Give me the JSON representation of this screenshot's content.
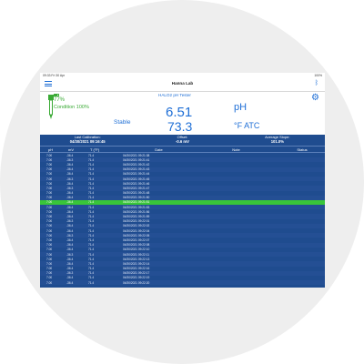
{
  "status_bar": {
    "time_date": "09:33  Fri 30 Apr",
    "battery": "100%"
  },
  "nav": {
    "title": "Hanna Lab"
  },
  "reading": {
    "probe_name": "HALO2 pH Tester",
    "battery_percent": "77%",
    "condition": "Condition 100%",
    "stability": "Stable",
    "ph_value": "6.51",
    "ph_unit": "pH",
    "temp_value": "73.3",
    "temp_unit": "°F ATC"
  },
  "calibration": {
    "last_label": "Last Calibration:",
    "last_value": "04/30/2021 09:16:45",
    "offset_label": "Offset:",
    "offset_value": "-0.6 mV",
    "slope_label": "Average Slope:",
    "slope_value": "101.0%"
  },
  "table": {
    "headers": {
      "ph": "pH",
      "mv": "mV",
      "temp": "T (°F)",
      "date": "Date",
      "note": "Note",
      "status": "Status"
    },
    "selected_index": 10,
    "rows": [
      {
        "ph": "7.00",
        "mv": "-36.4",
        "temp": "71.4",
        "date": "04/30/2021 09:21:38"
      },
      {
        "ph": "7.00",
        "mv": "-36.3",
        "temp": "71.4",
        "date": "04/30/2021 09:21:41"
      },
      {
        "ph": "7.00",
        "mv": "-36.4",
        "temp": "71.4",
        "date": "04/30/2021 09:21:42"
      },
      {
        "ph": "7.00",
        "mv": "-36.4",
        "temp": "71.4",
        "date": "04/30/2021 09:21:43"
      },
      {
        "ph": "7.00",
        "mv": "-36.4",
        "temp": "71.4",
        "date": "04/30/2021 09:21:44"
      },
      {
        "ph": "7.00",
        "mv": "-36.3",
        "temp": "71.4",
        "date": "04/30/2021 09:21:45"
      },
      {
        "ph": "7.00",
        "mv": "-36.4",
        "temp": "71.4",
        "date": "04/30/2021 09:21:46"
      },
      {
        "ph": "7.00",
        "mv": "-36.3",
        "temp": "71.4",
        "date": "04/30/2021 09:21:47"
      },
      {
        "ph": "7.00",
        "mv": "-36.4",
        "temp": "71.4",
        "date": "04/30/2021 09:21:48"
      },
      {
        "ph": "7.00",
        "mv": "-36.4",
        "temp": "71.4",
        "date": "04/30/2021 09:21:50"
      },
      {
        "ph": "7.00",
        "mv": "-36.4",
        "temp": "71.4",
        "date": "04/30/2021 09:21:51"
      },
      {
        "ph": "7.00",
        "mv": "-36.4",
        "temp": "71.4",
        "date": "04/30/2021 09:21:53"
      },
      {
        "ph": "7.00",
        "mv": "-36.4",
        "temp": "71.4",
        "date": "04/30/2021 09:21:56"
      },
      {
        "ph": "7.00",
        "mv": "-36.4",
        "temp": "71.4",
        "date": "04/30/2021 09:21:59"
      },
      {
        "ph": "7.00",
        "mv": "-36.3",
        "temp": "71.4",
        "date": "04/30/2021 09:22:01"
      },
      {
        "ph": "7.00",
        "mv": "-36.4",
        "temp": "71.4",
        "date": "04/30/2021 09:22:02"
      },
      {
        "ph": "7.00",
        "mv": "-36.4",
        "temp": "71.4",
        "date": "04/30/2021 09:22:04"
      },
      {
        "ph": "7.00",
        "mv": "-36.3",
        "temp": "71.4",
        "date": "04/30/2021 09:22:05"
      },
      {
        "ph": "7.00",
        "mv": "-36.4",
        "temp": "71.4",
        "date": "04/30/2021 09:22:07"
      },
      {
        "ph": "7.00",
        "mv": "-36.4",
        "temp": "71.4",
        "date": "04/30/2021 09:22:08"
      },
      {
        "ph": "7.00",
        "mv": "-36.4",
        "temp": "71.4",
        "date": "04/30/2021 09:22:10"
      },
      {
        "ph": "7.00",
        "mv": "-36.3",
        "temp": "71.4",
        "date": "04/30/2021 09:22:11"
      },
      {
        "ph": "7.00",
        "mv": "-36.4",
        "temp": "71.4",
        "date": "04/30/2021 09:22:13"
      },
      {
        "ph": "7.00",
        "mv": "-36.4",
        "temp": "71.4",
        "date": "04/30/2021 09:22:14"
      },
      {
        "ph": "7.00",
        "mv": "-36.4",
        "temp": "71.4",
        "date": "04/30/2021 09:22:16"
      },
      {
        "ph": "7.00",
        "mv": "-36.3",
        "temp": "71.4",
        "date": "04/30/2021 09:22:17"
      },
      {
        "ph": "7.00",
        "mv": "-36.4",
        "temp": "71.4",
        "date": "04/30/2021 09:22:19"
      },
      {
        "ph": "7.00",
        "mv": "-36.4",
        "temp": "71.4",
        "date": "04/30/2021 09:22:20"
      }
    ]
  },
  "colors": {
    "accent": "#1f6fd6",
    "table_bg": "#1f4c8f",
    "selected_row": "#39c53a",
    "condition": "#3aaa35"
  },
  "icons": {
    "menu": "hamburger-icon",
    "bluetooth": "bluetooth-icon",
    "settings": "gear-icon",
    "probe": "probe-icon"
  }
}
